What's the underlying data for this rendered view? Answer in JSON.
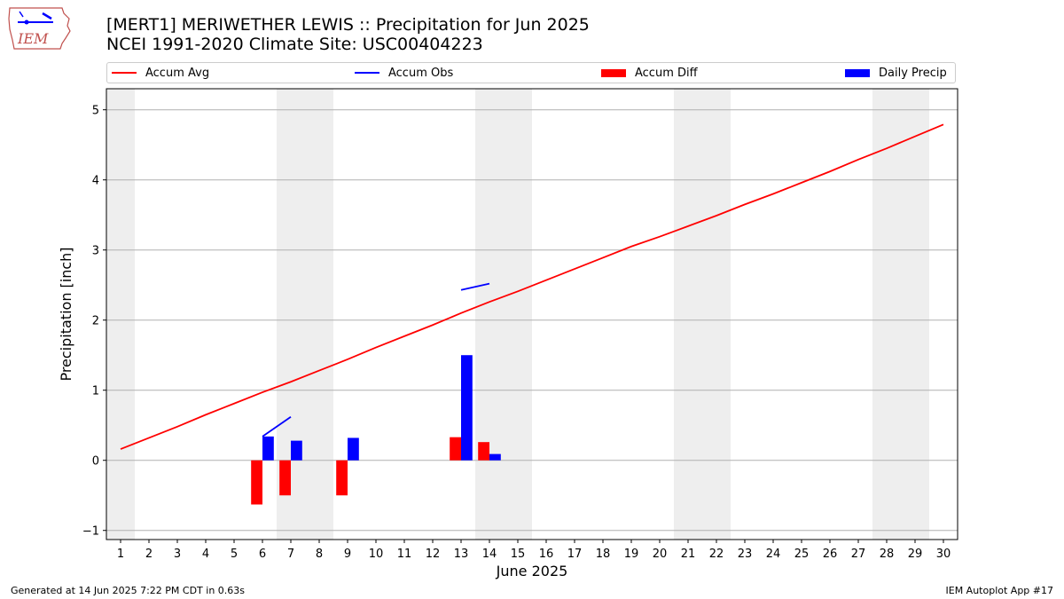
{
  "header": {
    "logo_text": "IEM",
    "title_line1": "[MERT1] MERIWETHER LEWIS :: Precipitation for Jun 2025",
    "title_line2": "NCEI 1991-2020 Climate Site: USC00404223"
  },
  "legend": {
    "items": [
      {
        "label": "Accum Avg",
        "kind": "line",
        "color": "#ff0000"
      },
      {
        "label": "Accum Obs",
        "kind": "line",
        "color": "#0000ff"
      },
      {
        "label": "Accum Diff",
        "kind": "patch",
        "color": "#ff0000"
      },
      {
        "label": "Daily Precip",
        "kind": "patch",
        "color": "#0000ff"
      }
    ]
  },
  "footer": {
    "left": "Generated at 14 Jun 2025 7:22 PM CDT in 0.63s",
    "right": "IEM Autoplot App #17"
  },
  "chart_data": {
    "type": "bar",
    "xlabel": "June 2025",
    "ylabel": "Precipitation [inch]",
    "xlim": [
      0.5,
      30.5
    ],
    "ylim": [
      -1.13,
      5.3
    ],
    "x_ticks": [
      1,
      2,
      3,
      4,
      5,
      6,
      7,
      8,
      9,
      10,
      11,
      12,
      13,
      14,
      15,
      16,
      17,
      18,
      19,
      20,
      21,
      22,
      23,
      24,
      25,
      26,
      27,
      28,
      29,
      30
    ],
    "y_ticks": [
      -1,
      0,
      1,
      2,
      3,
      4,
      5
    ],
    "grid": "y",
    "legend_position": "top",
    "weekend_bands": [
      [
        0.5,
        1.5
      ],
      [
        6.5,
        8.5
      ],
      [
        13.5,
        15.5
      ],
      [
        20.5,
        22.5
      ],
      [
        27.5,
        29.5
      ]
    ],
    "band_color": "#eeeeee",
    "series": [
      {
        "name": "Accum Avg",
        "type": "line",
        "color": "#ff0000",
        "x": [
          1,
          2,
          3,
          4,
          5,
          6,
          7,
          8,
          9,
          10,
          11,
          12,
          13,
          14,
          15,
          16,
          17,
          18,
          19,
          20,
          21,
          22,
          23,
          24,
          25,
          26,
          27,
          28,
          29,
          30
        ],
        "values": [
          0.16,
          0.32,
          0.48,
          0.65,
          0.81,
          0.97,
          1.12,
          1.28,
          1.44,
          1.61,
          1.77,
          1.93,
          2.1,
          2.26,
          2.41,
          2.57,
          2.73,
          2.89,
          3.05,
          3.19,
          3.34,
          3.49,
          3.65,
          3.8,
          3.96,
          4.12,
          4.29,
          4.45,
          4.62,
          4.79
        ]
      },
      {
        "name": "Accum Obs",
        "type": "line",
        "color": "#0000ff",
        "segments": [
          {
            "x": [
              6,
              7
            ],
            "values": [
              0.34,
              0.62
            ]
          },
          {
            "x": [
              13,
              14
            ],
            "values": [
              2.43,
              2.52
            ]
          }
        ]
      },
      {
        "name": "Accum Diff",
        "type": "bar",
        "color": "#ff0000",
        "x": [
          6,
          7,
          9,
          13,
          14
        ],
        "values": [
          -0.63,
          -0.5,
          -0.5,
          0.33,
          0.26
        ]
      },
      {
        "name": "Daily Precip",
        "type": "bar",
        "color": "#0000ff",
        "x": [
          6,
          7,
          9,
          13,
          14
        ],
        "values": [
          0.34,
          0.28,
          0.32,
          1.5,
          0.09
        ]
      }
    ]
  }
}
